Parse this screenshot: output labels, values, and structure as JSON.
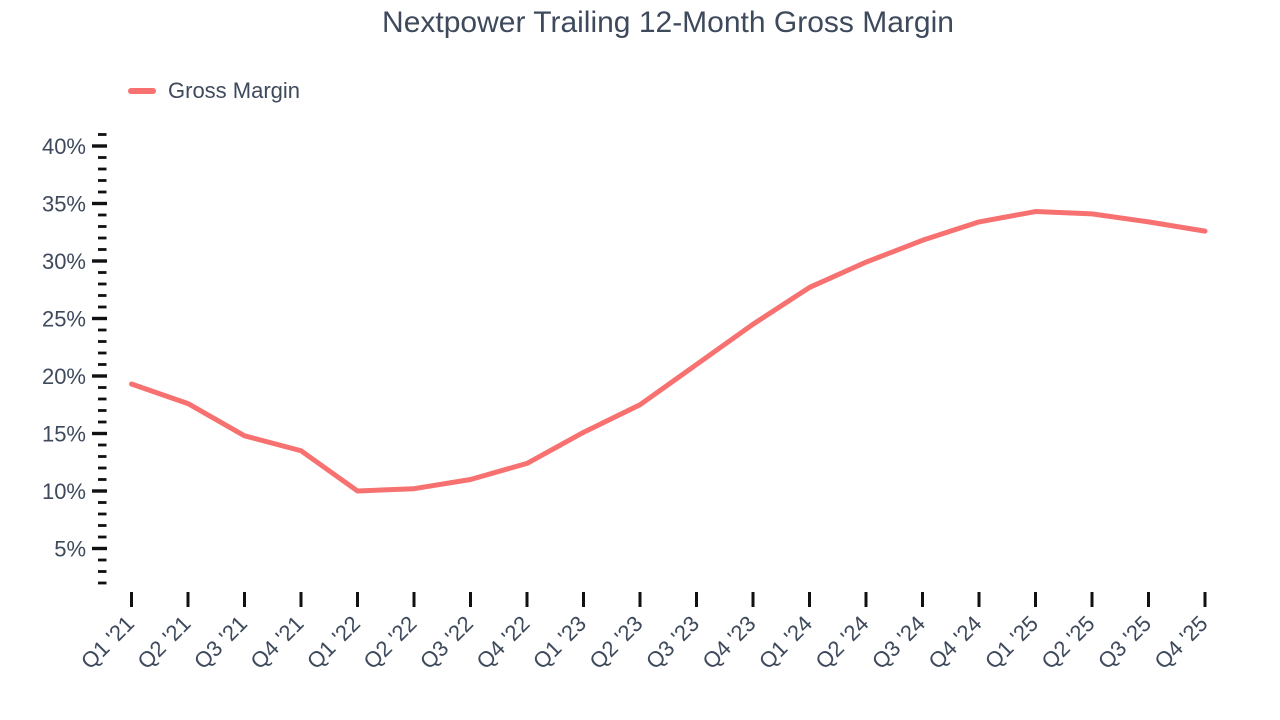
{
  "chart_data": {
    "type": "line",
    "title": "Nextpower Trailing 12-Month Gross Margin",
    "categories": [
      "Q1 '21",
      "Q2 '21",
      "Q3 '21",
      "Q4 '21",
      "Q1 '22",
      "Q2 '22",
      "Q3 '22",
      "Q4 '22",
      "Q1 '23",
      "Q2 '23",
      "Q3 '23",
      "Q4 '23",
      "Q1 '24",
      "Q2 '24",
      "Q3 '24",
      "Q4 '24",
      "Q1 '25",
      "Q2 '25",
      "Q3 '25",
      "Q4 '25"
    ],
    "series": [
      {
        "name": "Gross Margin",
        "color": "#F87171",
        "values": [
          19.3,
          17.6,
          14.8,
          13.5,
          10.0,
          10.2,
          11.0,
          12.4,
          15.1,
          17.5,
          21.0,
          24.5,
          27.7,
          29.9,
          31.8,
          33.4,
          34.3,
          34.1,
          33.4,
          32.6
        ]
      }
    ],
    "ylabel": "",
    "xlabel": "",
    "ytick_suffix": "%",
    "yticks_major": [
      5,
      10,
      15,
      20,
      25,
      30,
      35,
      40
    ],
    "ytick_minor_step": 1,
    "ylim": [
      0,
      41
    ],
    "grid": false,
    "legend_position": "top-left",
    "colors": {
      "line": "#F87171",
      "text": "#3E4A5C",
      "tick": "#111111"
    }
  }
}
